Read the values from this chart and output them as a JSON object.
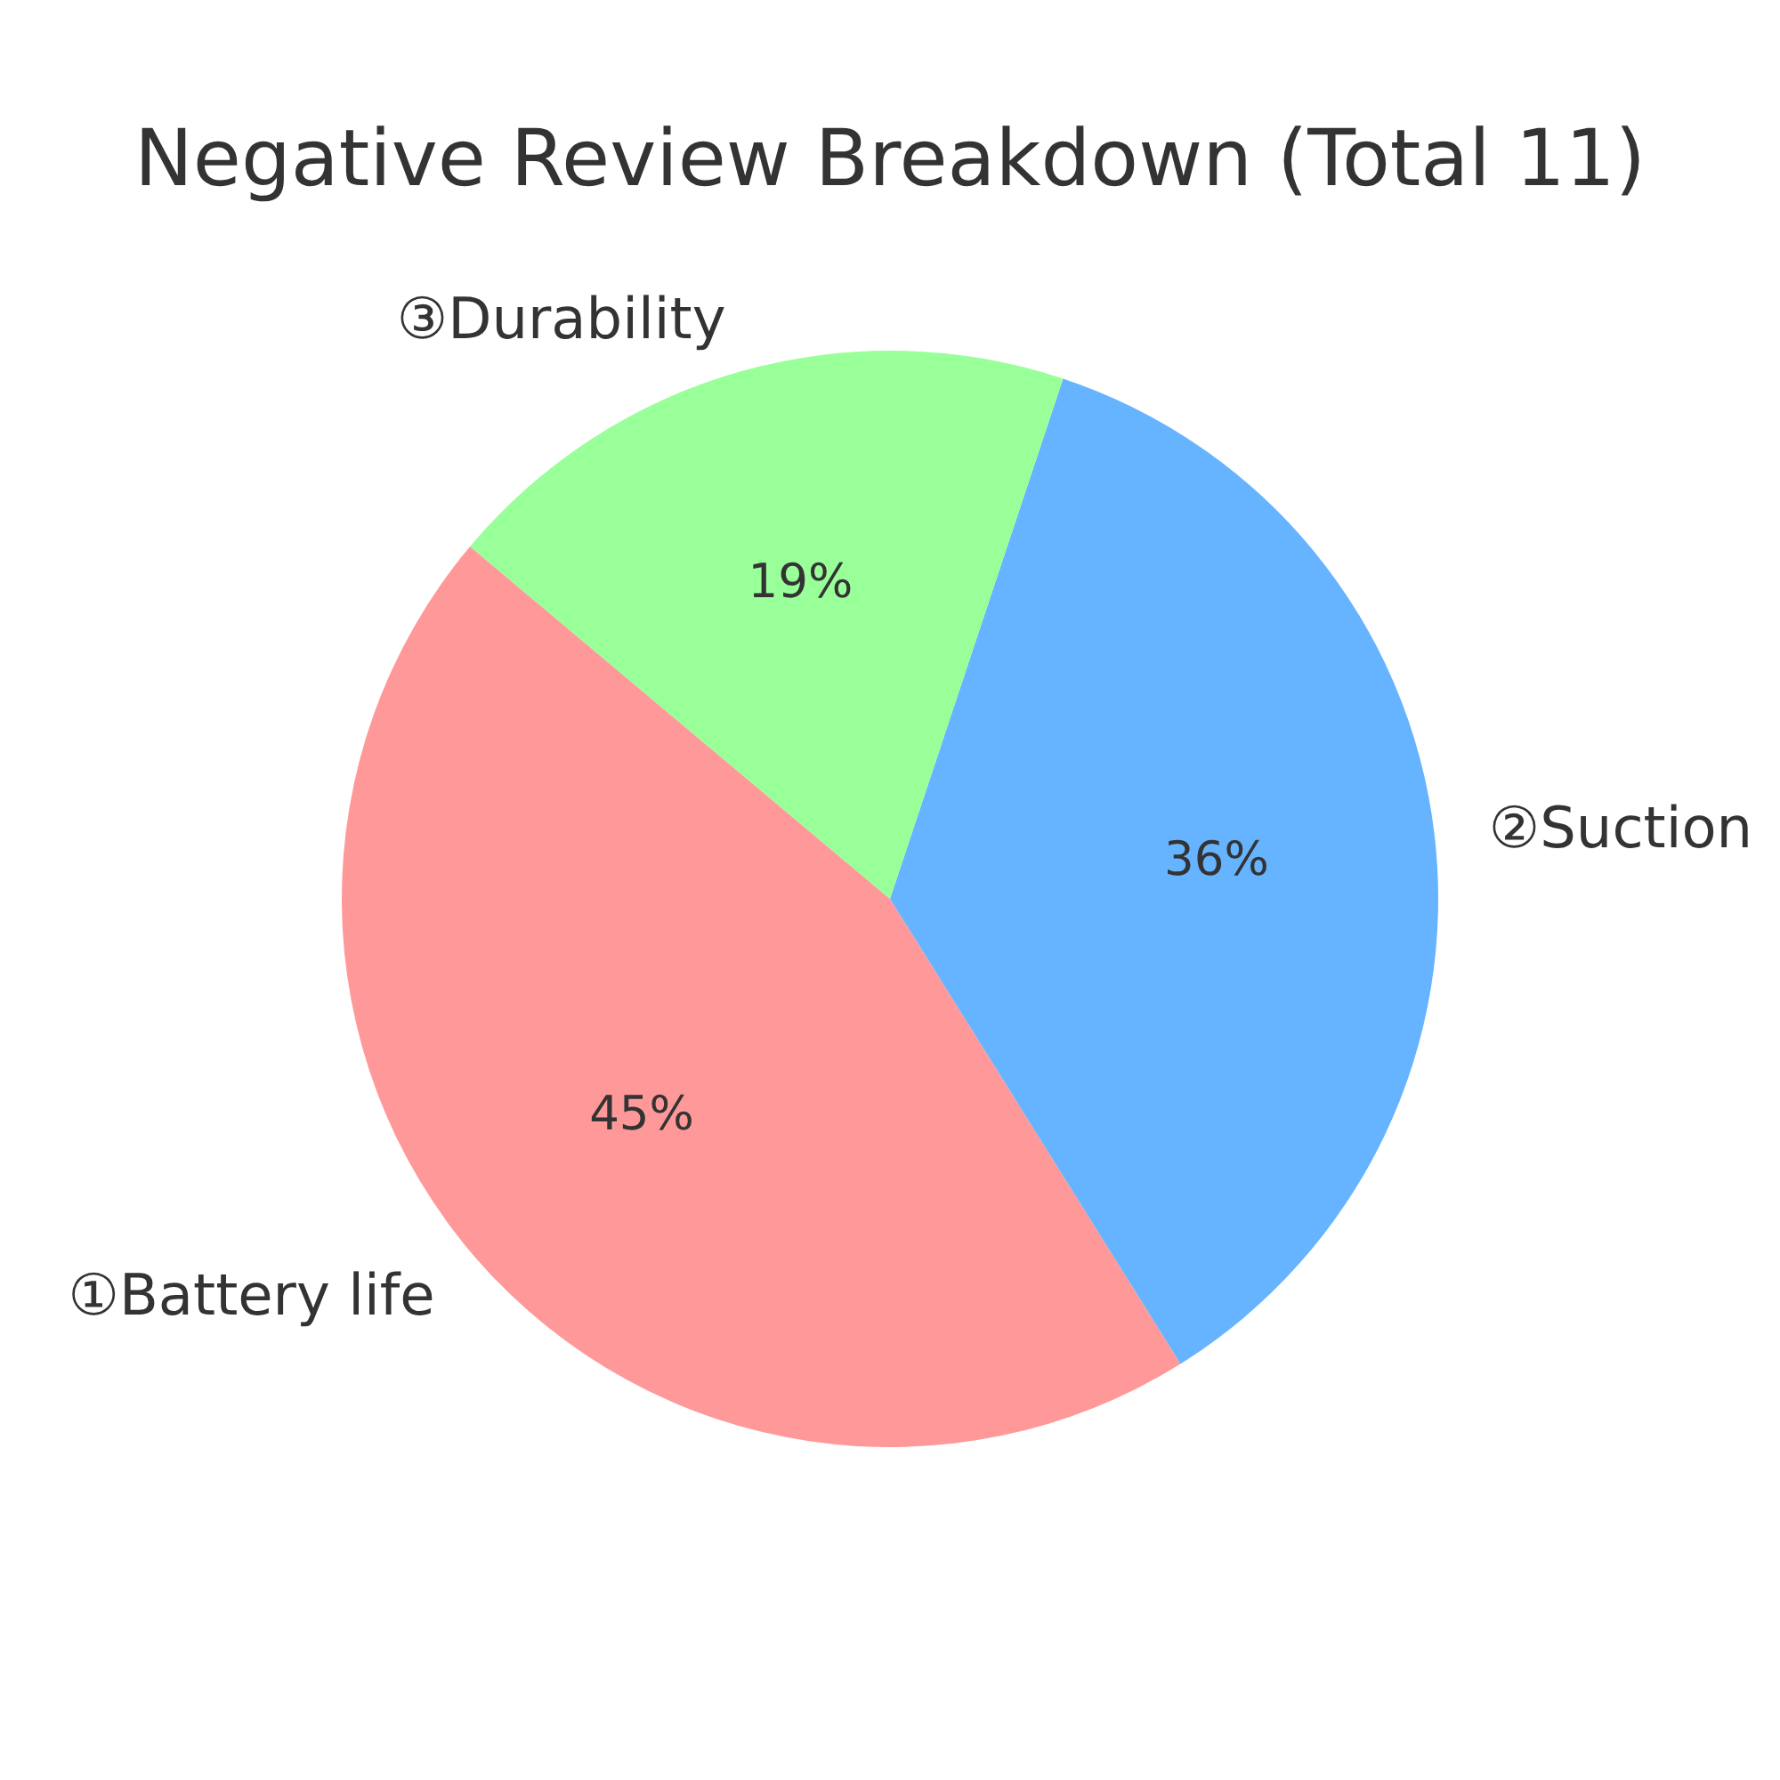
{
  "chart_data": {
    "type": "pie",
    "title": "Negative Review Breakdown (Total 11)",
    "categories": [
      "①Battery life",
      "②Suction",
      "③Durability"
    ],
    "values": [
      45,
      36,
      19
    ],
    "colors": [
      "#ff9999",
      "#66b3ff",
      "#99ff99"
    ],
    "value_labels": [
      "45%",
      "36%",
      "19%"
    ]
  }
}
